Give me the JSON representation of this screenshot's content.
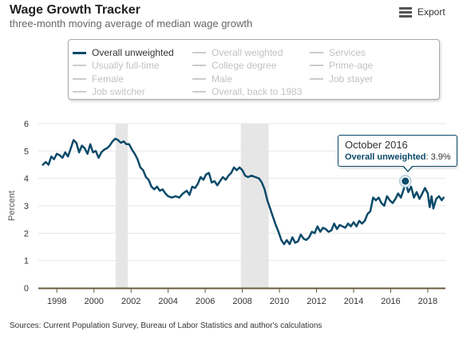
{
  "header": {
    "title": "Wage Growth Tracker",
    "subtitle": "three-month moving average of median wage growth",
    "export_label": "Export",
    "export_icon": "menu-icon"
  },
  "legend": {
    "items": [
      {
        "label": "Overall unweighted",
        "active": true
      },
      {
        "label": "Overall weighted",
        "active": false
      },
      {
        "label": "Services",
        "active": false
      },
      {
        "label": "Usually full-time",
        "active": false
      },
      {
        "label": "College degree",
        "active": false
      },
      {
        "label": "Prime-age",
        "active": false
      },
      {
        "label": "Female",
        "active": false
      },
      {
        "label": "Male",
        "active": false
      },
      {
        "label": "Job stayer",
        "active": false
      },
      {
        "label": "Job switcher",
        "active": false
      },
      {
        "label": "Overall, back to 1983",
        "active": false
      }
    ]
  },
  "tooltip": {
    "month": "October 2016",
    "series": "Overall unweighted",
    "value": "3.9%"
  },
  "source": "Sources: Current Population Survey, Bureau of Labor Statistics and author's calculations",
  "colors": {
    "line": "#0b4a6a",
    "recession": "#e6e6e6",
    "axis": "#6b5a3a",
    "gridline": "#e6e6e6"
  },
  "chart_data": {
    "type": "line",
    "ylabel": "Percent",
    "xlabel": "",
    "ylim": [
      0,
      6
    ],
    "yticks": [
      0,
      1,
      2,
      3,
      4,
      5,
      6
    ],
    "xticks": [
      1998,
      2000,
      2002,
      2004,
      2006,
      2008,
      2010,
      2012,
      2014,
      2016,
      2018
    ],
    "xlim": [
      1997.0,
      2018.95
    ],
    "grid": true,
    "recessions": [
      [
        2001.17,
        2001.83
      ],
      [
        2007.92,
        2009.42
      ]
    ],
    "series": [
      {
        "name": "Overall unweighted",
        "points": [
          [
            1997.25,
            4.5
          ],
          [
            1997.4,
            4.6
          ],
          [
            1997.55,
            4.5
          ],
          [
            1997.7,
            4.8
          ],
          [
            1997.85,
            4.7
          ],
          [
            1998.0,
            4.9
          ],
          [
            1998.15,
            4.85
          ],
          [
            1998.3,
            4.75
          ],
          [
            1998.45,
            4.95
          ],
          [
            1998.6,
            4.8
          ],
          [
            1998.75,
            5.1
          ],
          [
            1998.9,
            5.4
          ],
          [
            1999.05,
            5.3
          ],
          [
            1999.2,
            4.95
          ],
          [
            1999.35,
            5.2
          ],
          [
            1999.5,
            5.1
          ],
          [
            1999.65,
            4.9
          ],
          [
            1999.8,
            5.25
          ],
          [
            1999.95,
            4.95
          ],
          [
            2000.1,
            5.0
          ],
          [
            2000.25,
            4.75
          ],
          [
            2000.4,
            4.95
          ],
          [
            2000.55,
            5.05
          ],
          [
            2000.7,
            5.1
          ],
          [
            2000.85,
            5.2
          ],
          [
            2001.0,
            5.35
          ],
          [
            2001.15,
            5.45
          ],
          [
            2001.3,
            5.4
          ],
          [
            2001.45,
            5.3
          ],
          [
            2001.6,
            5.35
          ],
          [
            2001.75,
            5.25
          ],
          [
            2001.9,
            5.25
          ],
          [
            2002.05,
            5.05
          ],
          [
            2002.2,
            4.9
          ],
          [
            2002.35,
            4.7
          ],
          [
            2002.5,
            4.4
          ],
          [
            2002.65,
            4.3
          ],
          [
            2002.8,
            4.05
          ],
          [
            2002.95,
            3.95
          ],
          [
            2003.1,
            3.7
          ],
          [
            2003.25,
            3.6
          ],
          [
            2003.4,
            3.7
          ],
          [
            2003.55,
            3.55
          ],
          [
            2003.7,
            3.6
          ],
          [
            2003.85,
            3.45
          ],
          [
            2004.0,
            3.35
          ],
          [
            2004.2,
            3.3
          ],
          [
            2004.4,
            3.35
          ],
          [
            2004.6,
            3.3
          ],
          [
            2004.8,
            3.45
          ],
          [
            2005.0,
            3.55
          ],
          [
            2005.15,
            3.4
          ],
          [
            2005.3,
            3.7
          ],
          [
            2005.45,
            3.65
          ],
          [
            2005.6,
            3.8
          ],
          [
            2005.75,
            4.05
          ],
          [
            2005.9,
            3.95
          ],
          [
            2006.05,
            4.15
          ],
          [
            2006.2,
            4.2
          ],
          [
            2006.35,
            3.85
          ],
          [
            2006.5,
            3.9
          ],
          [
            2006.65,
            3.75
          ],
          [
            2006.8,
            3.9
          ],
          [
            2006.95,
            4.05
          ],
          [
            2007.1,
            3.95
          ],
          [
            2007.25,
            4.1
          ],
          [
            2007.4,
            4.2
          ],
          [
            2007.55,
            4.4
          ],
          [
            2007.7,
            4.3
          ],
          [
            2007.85,
            4.4
          ],
          [
            2008.0,
            4.3
          ],
          [
            2008.15,
            4.1
          ],
          [
            2008.3,
            4.05
          ],
          [
            2008.5,
            4.1
          ],
          [
            2008.7,
            4.05
          ],
          [
            2008.9,
            4.0
          ],
          [
            2009.05,
            3.85
          ],
          [
            2009.2,
            3.6
          ],
          [
            2009.35,
            3.2
          ],
          [
            2009.5,
            2.9
          ],
          [
            2009.65,
            2.6
          ],
          [
            2009.8,
            2.3
          ],
          [
            2009.95,
            2.05
          ],
          [
            2010.1,
            1.75
          ],
          [
            2010.25,
            1.6
          ],
          [
            2010.4,
            1.75
          ],
          [
            2010.55,
            1.6
          ],
          [
            2010.7,
            1.85
          ],
          [
            2010.85,
            1.65
          ],
          [
            2011.0,
            1.7
          ],
          [
            2011.15,
            1.95
          ],
          [
            2011.3,
            1.8
          ],
          [
            2011.45,
            1.75
          ],
          [
            2011.6,
            1.85
          ],
          [
            2011.75,
            2.05
          ],
          [
            2011.9,
            2.0
          ],
          [
            2012.05,
            2.25
          ],
          [
            2012.2,
            2.05
          ],
          [
            2012.35,
            2.2
          ],
          [
            2012.5,
            2.15
          ],
          [
            2012.65,
            2.05
          ],
          [
            2012.8,
            2.1
          ],
          [
            2012.95,
            2.35
          ],
          [
            2013.1,
            2.15
          ],
          [
            2013.25,
            2.3
          ],
          [
            2013.4,
            2.25
          ],
          [
            2013.55,
            2.2
          ],
          [
            2013.7,
            2.35
          ],
          [
            2013.85,
            2.25
          ],
          [
            2014.0,
            2.4
          ],
          [
            2014.15,
            2.25
          ],
          [
            2014.3,
            2.45
          ],
          [
            2014.45,
            2.35
          ],
          [
            2014.6,
            2.45
          ],
          [
            2014.75,
            2.7
          ],
          [
            2014.9,
            2.8
          ],
          [
            2015.05,
            3.3
          ],
          [
            2015.2,
            3.2
          ],
          [
            2015.35,
            3.3
          ],
          [
            2015.5,
            3.1
          ],
          [
            2015.65,
            3.0
          ],
          [
            2015.8,
            3.35
          ],
          [
            2015.95,
            3.2
          ],
          [
            2016.1,
            3.1
          ],
          [
            2016.25,
            3.25
          ],
          [
            2016.4,
            3.45
          ],
          [
            2016.55,
            3.3
          ],
          [
            2016.7,
            3.6
          ],
          [
            2016.79,
            3.9
          ],
          [
            2016.95,
            3.5
          ],
          [
            2017.1,
            3.7
          ],
          [
            2017.25,
            3.3
          ],
          [
            2017.4,
            3.5
          ],
          [
            2017.55,
            3.25
          ],
          [
            2017.7,
            3.45
          ],
          [
            2017.85,
            3.65
          ],
          [
            2018.0,
            3.45
          ],
          [
            2018.1,
            2.95
          ],
          [
            2018.2,
            3.35
          ],
          [
            2018.3,
            2.9
          ],
          [
            2018.45,
            3.25
          ],
          [
            2018.6,
            3.35
          ],
          [
            2018.75,
            3.2
          ],
          [
            2018.85,
            3.3
          ]
        ]
      }
    ],
    "highlight": {
      "x": 2016.79,
      "y": 3.9
    }
  }
}
